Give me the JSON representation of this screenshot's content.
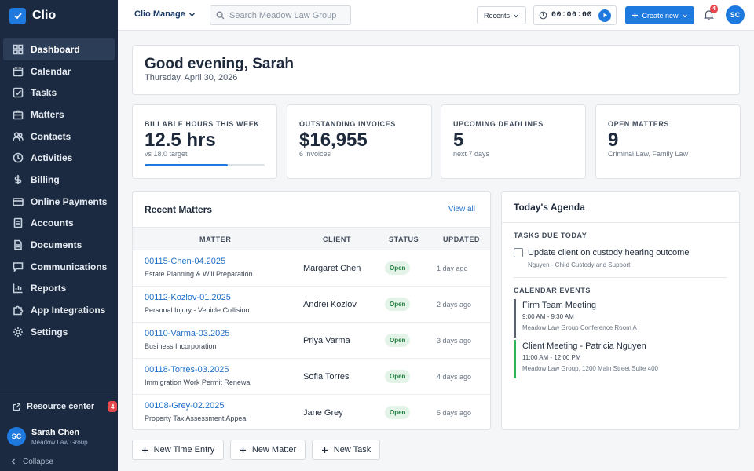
{
  "brand": {
    "name": "Clio"
  },
  "sidebar": {
    "items": [
      {
        "label": "Dashboard",
        "icon": "dashboard-icon"
      },
      {
        "label": "Calendar",
        "icon": "calendar-icon"
      },
      {
        "label": "Tasks",
        "icon": "tasks-icon"
      },
      {
        "label": "Matters",
        "icon": "briefcase-icon"
      },
      {
        "label": "Contacts",
        "icon": "contacts-icon"
      },
      {
        "label": "Activities",
        "icon": "clock-icon"
      },
      {
        "label": "Billing",
        "icon": "dollar-icon"
      },
      {
        "label": "Online Payments",
        "icon": "card-icon"
      },
      {
        "label": "Accounts",
        "icon": "bank-icon"
      },
      {
        "label": "Documents",
        "icon": "document-icon"
      },
      {
        "label": "Communications",
        "icon": "message-icon"
      },
      {
        "label": "Reports",
        "icon": "chart-icon"
      },
      {
        "label": "App Integrations",
        "icon": "puzzle-icon"
      },
      {
        "label": "Settings",
        "icon": "gear-icon"
      }
    ],
    "active": "Dashboard",
    "resource_center": "Resource center",
    "resource_badge": "4",
    "user_initials": "SC",
    "user_name": "Sarah Chen",
    "user_org": "Meadow Law Group",
    "collapse": "Collapse"
  },
  "topbar": {
    "app_switch": "Clio Manage",
    "search_placeholder": "Search Meadow Law Group",
    "recents": "Recents",
    "timer": "00:00:00",
    "create_new": "Create new",
    "notification_count": "4",
    "avatar_initials": "SC"
  },
  "greeting": {
    "title": "Good evening, Sarah",
    "date": "Thursday, April 30, 2026"
  },
  "kpis": [
    {
      "label": "BILLABLE HOURS THIS WEEK",
      "value": "12.5 hrs",
      "sub": "vs 18.0 target",
      "progress": 0.694
    },
    {
      "label": "OUTSTANDING INVOICES",
      "value": "$16,955",
      "sub": "6 invoices"
    },
    {
      "label": "UPCOMING DEADLINES",
      "value": "5",
      "sub": "next 7 days"
    },
    {
      "label": "OPEN MATTERS",
      "value": "9",
      "sub": "Criminal Law, Family Law"
    }
  ],
  "recent_matters": {
    "title": "Recent Matters",
    "view_all": "View all",
    "columns": [
      "MATTER",
      "CLIENT",
      "STATUS",
      "UPDATED"
    ],
    "rows": [
      {
        "id": "00115-Chen-04.2025",
        "desc": "Estate Planning & Will Preparation",
        "client": "Margaret Chen",
        "status": "Open",
        "updated": "1 day ago"
      },
      {
        "id": "00112-Kozlov-01.2025",
        "desc": "Personal Injury - Vehicle Collision",
        "client": "Andrei Kozlov",
        "status": "Open",
        "updated": "2 days ago"
      },
      {
        "id": "00110-Varma-03.2025",
        "desc": "Business Incorporation",
        "client": "Priya Varma",
        "status": "Open",
        "updated": "3 days ago"
      },
      {
        "id": "00118-Torres-03.2025",
        "desc": "Immigration Work Permit Renewal",
        "client": "Sofia Torres",
        "status": "Open",
        "updated": "4 days ago"
      },
      {
        "id": "00108-Grey-02.2025",
        "desc": "Property Tax Assessment Appeal",
        "client": "Jane Grey",
        "status": "Open",
        "updated": "5 days ago"
      }
    ]
  },
  "agenda": {
    "title": "Today's Agenda",
    "tasks_label": "TASKS DUE TODAY",
    "task": {
      "title": "Update client on custody hearing outcome",
      "sub": "Nguyen - Child Custody and Support"
    },
    "events_label": "CALENDAR EVENTS",
    "events": [
      {
        "title": "Firm Team Meeting",
        "time": "9:00 AM - 9:30 AM",
        "location": "Meadow Law Group Conference Room A",
        "color": "#5b6370"
      },
      {
        "title": "Client Meeting - Patricia Nguyen",
        "time": "11:00 AM - 12:00 PM",
        "location": "Meadow Law Group, 1200 Main Street Suite 400",
        "color": "#2bb45a"
      }
    ]
  },
  "quick_actions": [
    "New Time Entry",
    "New Matter",
    "New Task"
  ],
  "colors": {
    "sidebar": "#1b2a41",
    "accent": "#1f7ae0",
    "status_open": "#1d7a3c"
  }
}
